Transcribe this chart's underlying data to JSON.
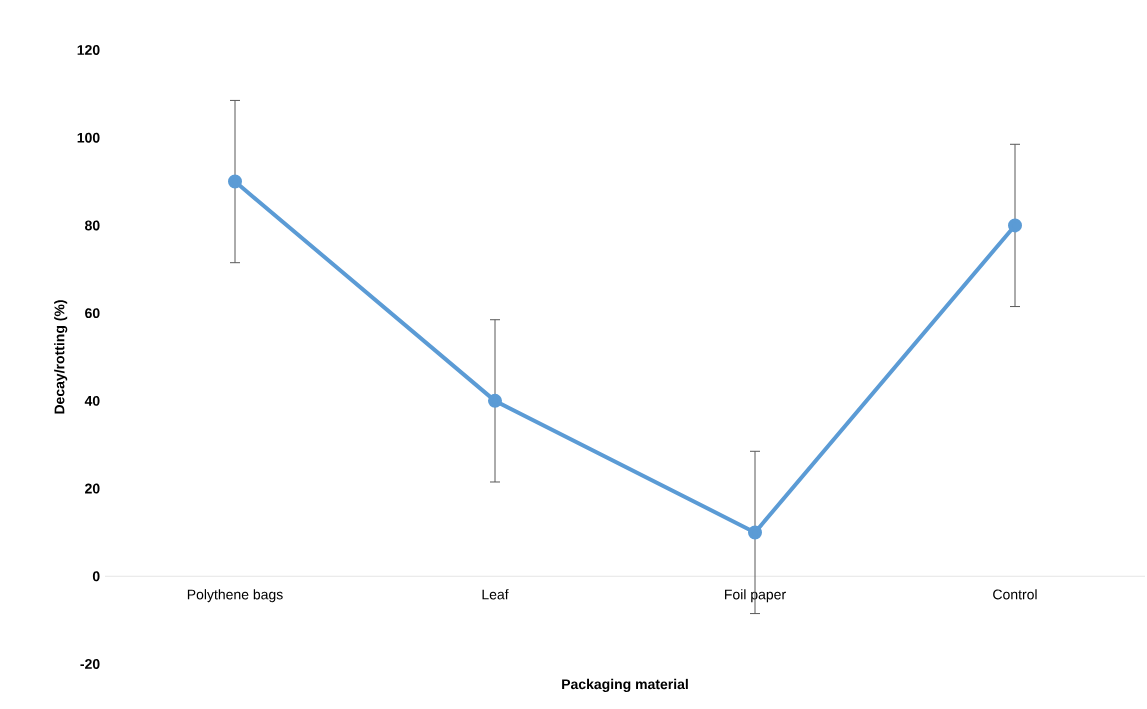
{
  "chart_data": {
    "type": "line",
    "xlabel": "Packaging material",
    "ylabel": "Decay/rotting (%)",
    "categories": [
      "Polythene bags",
      "Leaf",
      "Foil paper",
      "Control"
    ],
    "values": [
      90,
      40,
      10,
      80
    ],
    "errors": [
      18.5,
      18.5,
      18.5,
      18.5
    ],
    "color": "#5b9bd5",
    "ylim": [
      -20,
      120
    ],
    "yticks": [
      -20,
      0,
      20,
      40,
      60,
      80,
      100,
      120
    ],
    "marker": "circle",
    "line_style": "solid"
  }
}
